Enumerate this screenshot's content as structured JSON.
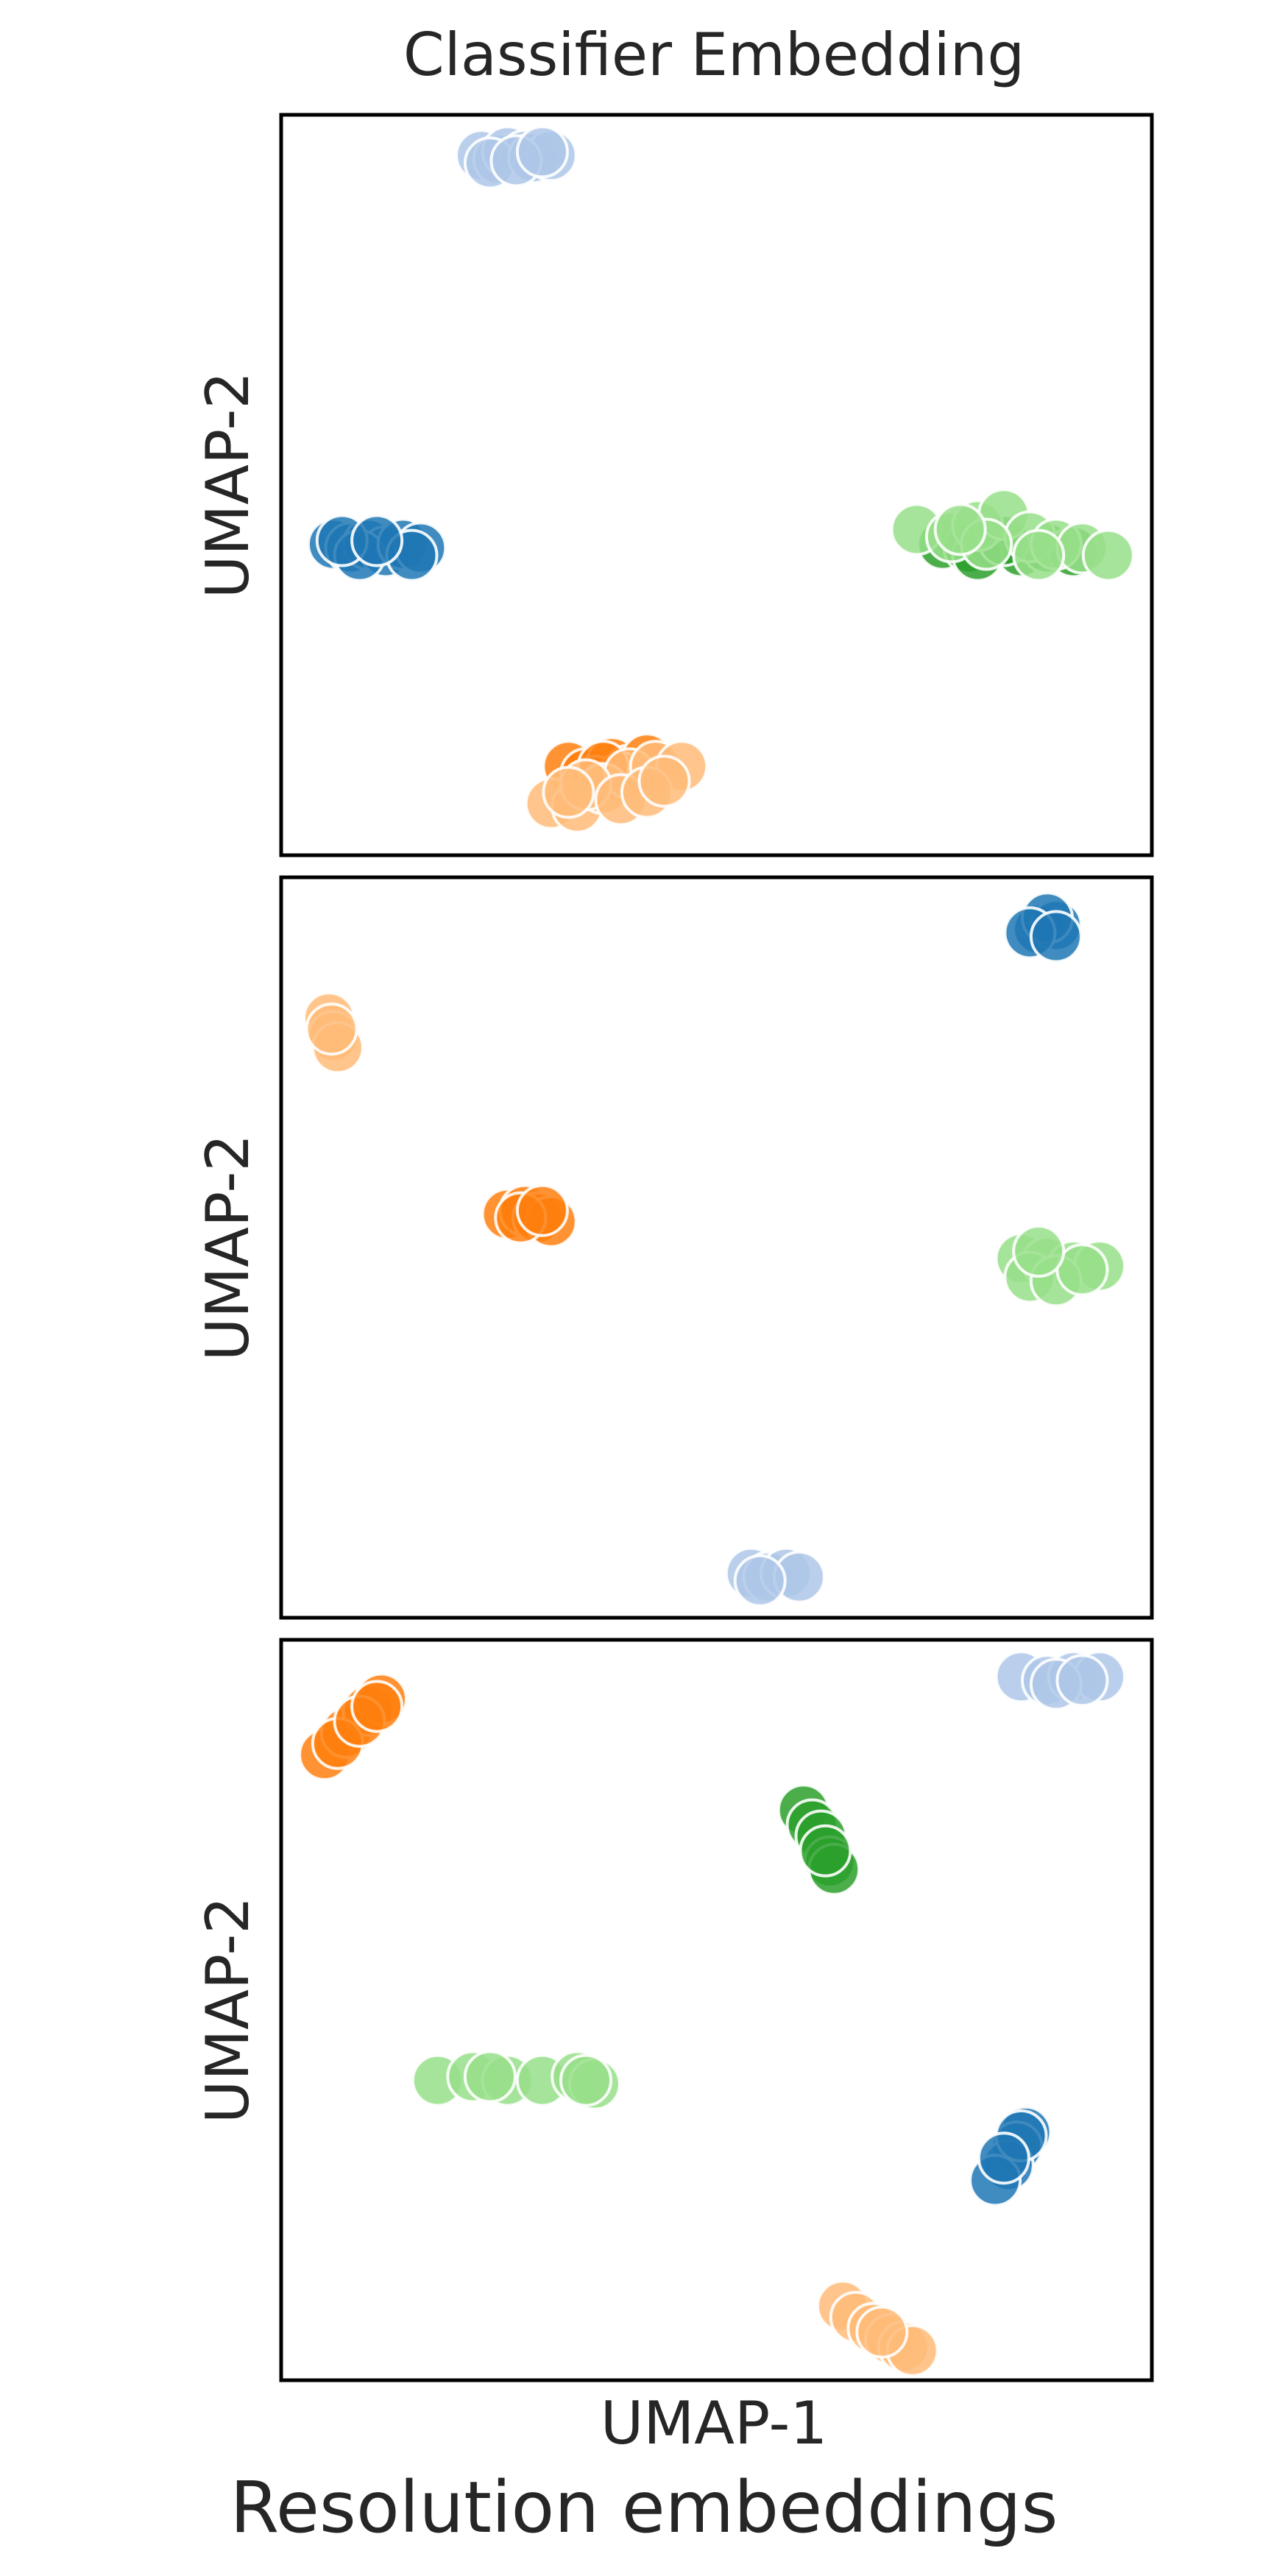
{
  "figure": {
    "title": "Classifier Embedding",
    "footer": "Resolution embeddings",
    "xlabel": "UMAP-1",
    "ylabel": "UMAP-2"
  },
  "colors": {
    "dark_blue": "#1f77b4",
    "light_blue": "#aec7e8",
    "dark_orange": "#ff7f0e",
    "light_orange": "#ffbb78",
    "dark_green": "#2ca02c",
    "light_green": "#98df8a"
  },
  "chart_data": [
    {
      "type": "scatter",
      "title": "Classifier Embedding",
      "xlabel": "",
      "ylabel": "UMAP-2",
      "xlim": [
        0,
        10
      ],
      "ylim": [
        0,
        10
      ],
      "grid": false,
      "ticks_shown": false,
      "series": [
        {
          "color": "#aec7e8",
          "points": [
            [
              2.3,
              9.45
            ],
            [
              2.5,
              9.4
            ],
            [
              2.6,
              9.5
            ],
            [
              2.8,
              9.45
            ],
            [
              2.4,
              9.35
            ],
            [
              2.9,
              9.42
            ],
            [
              3.1,
              9.45
            ],
            [
              2.7,
              9.38
            ],
            [
              3.0,
              9.5
            ]
          ]
        },
        {
          "color": "#1f77b4",
          "points": [
            [
              0.6,
              4.2
            ],
            [
              0.8,
              4.15
            ],
            [
              1.0,
              4.2
            ],
            [
              1.2,
              4.1
            ],
            [
              0.9,
              4.05
            ],
            [
              1.4,
              4.2
            ],
            [
              1.6,
              4.15
            ],
            [
              1.5,
              4.05
            ],
            [
              0.7,
              4.25
            ],
            [
              1.1,
              4.25
            ]
          ]
        },
        {
          "color": "#2ca02c",
          "points": [
            [
              7.6,
              4.2
            ],
            [
              7.9,
              4.15
            ],
            [
              8.2,
              4.2
            ],
            [
              8.5,
              4.1
            ],
            [
              8.0,
              4.05
            ],
            [
              8.8,
              4.15
            ],
            [
              9.1,
              4.1
            ],
            [
              8.3,
              4.25
            ]
          ]
        },
        {
          "color": "#98df8a",
          "points": [
            [
              7.3,
              4.4
            ],
            [
              7.7,
              4.3
            ],
            [
              8.0,
              4.45
            ],
            [
              8.3,
              4.6
            ],
            [
              8.6,
              4.3
            ],
            [
              8.9,
              4.2
            ],
            [
              9.2,
              4.15
            ],
            [
              9.5,
              4.05
            ],
            [
              8.1,
              4.2
            ],
            [
              8.7,
              4.05
            ],
            [
              7.8,
              4.4
            ]
          ]
        },
        {
          "color": "#ff7f0e",
          "points": [
            [
              3.3,
              1.2
            ],
            [
              3.5,
              1.1
            ],
            [
              3.8,
              1.25
            ],
            [
              4.0,
              1.15
            ],
            [
              3.6,
              1.0
            ],
            [
              4.2,
              1.3
            ],
            [
              3.9,
              1.05
            ],
            [
              3.7,
              1.2
            ]
          ]
        },
        {
          "color": "#ffbb78",
          "points": [
            [
              3.1,
              0.7
            ],
            [
              3.4,
              0.65
            ],
            [
              3.7,
              0.9
            ],
            [
              4.0,
              1.1
            ],
            [
              4.3,
              1.2
            ],
            [
              4.6,
              1.2
            ],
            [
              3.5,
              0.95
            ],
            [
              3.9,
              0.75
            ],
            [
              4.2,
              0.85
            ],
            [
              4.4,
              1.0
            ],
            [
              3.3,
              0.85
            ]
          ]
        }
      ]
    },
    {
      "type": "scatter",
      "xlabel": "",
      "ylabel": "UMAP-2",
      "xlim": [
        0,
        10
      ],
      "ylim": [
        0,
        10
      ],
      "grid": false,
      "ticks_shown": false,
      "series": [
        {
          "color": "#1f77b4",
          "points": [
            [
              8.7,
              9.3
            ],
            [
              8.9,
              9.35
            ],
            [
              8.8,
              9.45
            ],
            [
              8.6,
              9.25
            ],
            [
              8.9,
              9.2
            ]
          ]
        },
        {
          "color": "#ffbb78",
          "points": [
            [
              0.55,
              8.1
            ],
            [
              0.6,
              7.85
            ],
            [
              0.65,
              7.7
            ],
            [
              0.58,
              7.95
            ]
          ]
        },
        {
          "color": "#ff7f0e",
          "points": [
            [
              2.6,
              5.45
            ],
            [
              2.8,
              5.5
            ],
            [
              2.95,
              5.4
            ],
            [
              3.1,
              5.35
            ],
            [
              2.75,
              5.4
            ],
            [
              3.0,
              5.5
            ]
          ]
        },
        {
          "color": "#98df8a",
          "points": [
            [
              8.5,
              4.85
            ],
            [
              8.8,
              4.8
            ],
            [
              9.1,
              4.75
            ],
            [
              9.4,
              4.75
            ],
            [
              8.6,
              4.6
            ],
            [
              8.9,
              4.55
            ],
            [
              9.2,
              4.7
            ],
            [
              8.7,
              4.95
            ]
          ]
        },
        {
          "color": "#aec7e8",
          "points": [
            [
              5.4,
              0.6
            ],
            [
              5.6,
              0.55
            ],
            [
              5.8,
              0.6
            ],
            [
              5.95,
              0.55
            ],
            [
              5.5,
              0.5
            ]
          ]
        }
      ]
    },
    {
      "type": "scatter",
      "xlabel": "UMAP-1",
      "ylabel": "UMAP-2",
      "xlim": [
        0,
        10
      ],
      "ylim": [
        0,
        10
      ],
      "grid": false,
      "ticks_shown": false,
      "series": [
        {
          "color": "#aec7e8",
          "points": [
            [
              8.5,
              9.5
            ],
            [
              8.8,
              9.45
            ],
            [
              9.1,
              9.5
            ],
            [
              9.4,
              9.5
            ],
            [
              8.9,
              9.4
            ],
            [
              9.2,
              9.45
            ]
          ]
        },
        {
          "color": "#ff7f0e",
          "points": [
            [
              0.5,
              8.45
            ],
            [
              0.75,
              8.75
            ],
            [
              1.0,
              9.05
            ],
            [
              1.15,
              9.2
            ],
            [
              0.65,
              8.6
            ],
            [
              0.9,
              8.9
            ],
            [
              1.1,
              9.1
            ]
          ]
        },
        {
          "color": "#2ca02c",
          "points": [
            [
              6.0,
              7.7
            ],
            [
              6.1,
              7.5
            ],
            [
              6.2,
              7.35
            ],
            [
              6.3,
              7.0
            ],
            [
              6.35,
              6.9
            ],
            [
              6.25,
              7.15
            ]
          ]
        },
        {
          "color": "#98df8a",
          "points": [
            [
              1.8,
              4.05
            ],
            [
              2.2,
              4.1
            ],
            [
              2.6,
              4.05
            ],
            [
              3.0,
              4.05
            ],
            [
              3.4,
              4.1
            ],
            [
              3.6,
              4.0
            ],
            [
              3.5,
              4.05
            ],
            [
              2.4,
              4.1
            ]
          ]
        },
        {
          "color": "#1f77b4",
          "points": [
            [
              8.55,
              3.35
            ],
            [
              8.45,
              3.15
            ],
            [
              8.35,
              2.9
            ],
            [
              8.2,
              2.7
            ],
            [
              8.5,
              3.3
            ],
            [
              8.3,
              3.0
            ]
          ]
        },
        {
          "color": "#ffbb78",
          "points": [
            [
              6.45,
              1.0
            ],
            [
              6.6,
              0.85
            ],
            [
              6.8,
              0.7
            ],
            [
              7.0,
              0.55
            ],
            [
              7.15,
              0.45
            ],
            [
              7.25,
              0.4
            ],
            [
              6.9,
              0.65
            ]
          ]
        }
      ]
    }
  ]
}
